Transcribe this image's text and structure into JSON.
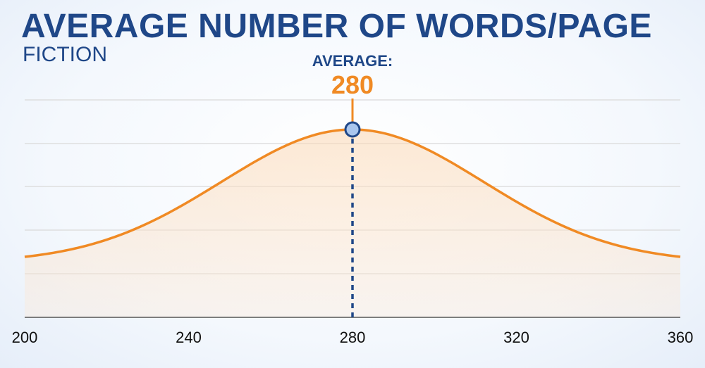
{
  "title": "AVERAGE NUMBER OF WORDS/PAGE",
  "subtitle": "FICTION",
  "colors": {
    "title": "#1f4788",
    "accent": "#f08a24",
    "marker_fill": "#a9c6ee",
    "grid": "#d9d9d9",
    "axis": "#1f4788"
  },
  "chart_data": {
    "type": "area",
    "xlim": [
      200,
      360
    ],
    "x_ticks": [
      200,
      240,
      280,
      320,
      360
    ],
    "x_tick_labels": [
      "200",
      "240",
      "280",
      "320",
      "360"
    ],
    "curve": {
      "distribution": "normal",
      "mean": 280,
      "sd": 32
    },
    "grid": true,
    "annotation": {
      "label": "AVERAGE:",
      "value": "280",
      "x": 280
    }
  }
}
